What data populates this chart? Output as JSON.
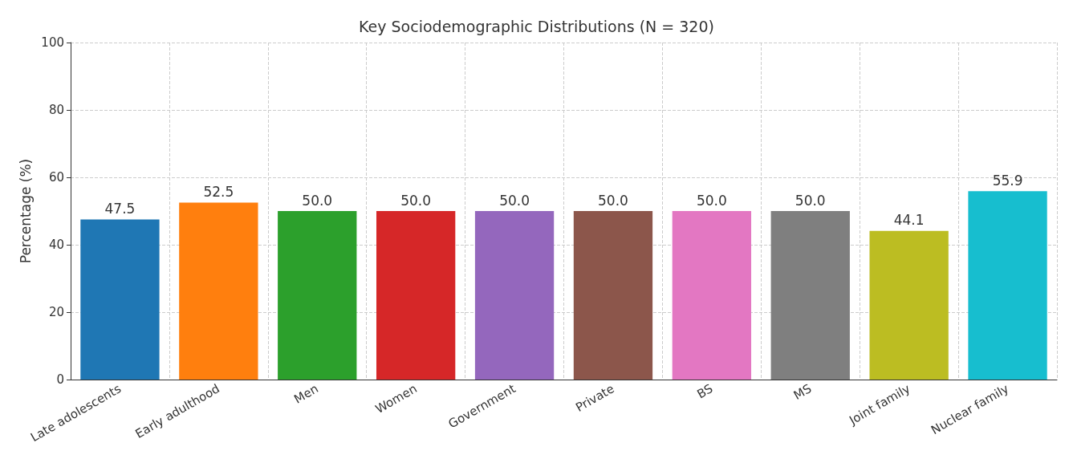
{
  "chart_data": {
    "type": "bar",
    "title": "Key Sociodemographic Distributions (N = 320)",
    "ylabel": "Percentage (%)",
    "categories": [
      "Late adolescents",
      "Early adulthood",
      "Men",
      "Women",
      "Government",
      "Private",
      "BS",
      "MS",
      "Joint family",
      "Nuclear family"
    ],
    "values": [
      47.5,
      52.5,
      50.0,
      50.0,
      50.0,
      50.0,
      50.0,
      50.0,
      44.1,
      55.9
    ],
    "value_labels": [
      "47.5",
      "52.5",
      "50.0",
      "50.0",
      "50.0",
      "50.0",
      "50.0",
      "50.0",
      "44.1",
      "55.9"
    ],
    "colors": [
      "#1f77b4",
      "#ff7f0e",
      "#2ca02c",
      "#d62728",
      "#9467bd",
      "#8c564b",
      "#e377c2",
      "#7f7f7f",
      "#bcbd22",
      "#17becf"
    ],
    "ylim": [
      0,
      100
    ],
    "yticks": [
      0,
      20,
      40,
      60,
      80,
      100
    ],
    "grid": true
  }
}
